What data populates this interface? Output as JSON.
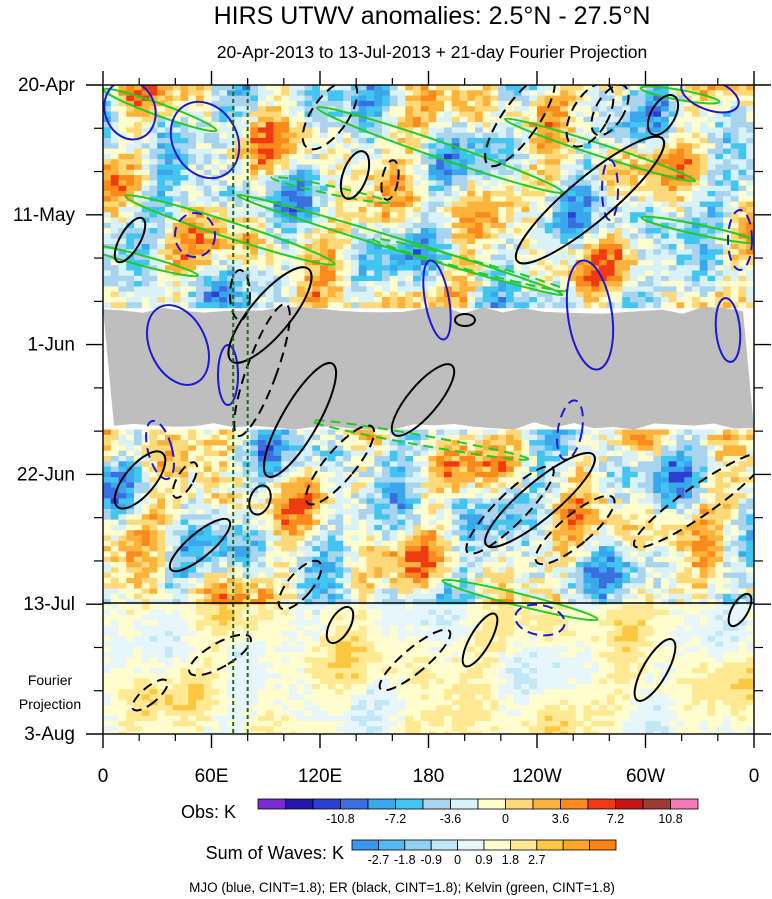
{
  "chart_data": {
    "type": "heatmap",
    "title": "HIRS UTWV anomalies: 2.5°N - 27.5°N",
    "subtitle": "20-Apr-2013 to 13-Jul-2013 + 21-day Fourier Projection",
    "x_ticks": [
      "0",
      "60E",
      "120E",
      "180",
      "120W",
      "60W",
      "0"
    ],
    "x_range_deg_east": [
      0,
      360
    ],
    "y_ticks": [
      "20-Apr",
      "11-May",
      "1-Jun",
      "22-Jun",
      "13-Jul",
      "3-Aug"
    ],
    "y_range": [
      "20-Apr-2013",
      "3-Aug-2013"
    ],
    "projection_label_lines": [
      "Fourier",
      "Projection"
    ],
    "missing_data_period": [
      "~23-May-2013",
      "~12-Jun-2013"
    ],
    "observation_end": "13-Jul-2013",
    "reference_longitudes_deg_east": [
      72,
      80
    ],
    "obs_colorbar": {
      "label": "Obs: K",
      "tick_labels": [
        "-10.8",
        "-7.2",
        "-3.6",
        "0",
        "3.6",
        "7.2",
        "10.8"
      ],
      "colors": [
        "#7b2bd6",
        "#2316a8",
        "#2b3fd1",
        "#3b6fe0",
        "#3aa6ec",
        "#42c5f0",
        "#a8d4f0",
        "#d8f2f8",
        "#fffccd",
        "#fdd97a",
        "#fcb33c",
        "#f98a1b",
        "#ef3a12",
        "#c81414",
        "#9c3a36",
        "#f77ab8"
      ]
    },
    "waves_colorbar": {
      "label": "Sum of Waves: K",
      "tick_labels": [
        "-2.7",
        "-1.8",
        "-0.9",
        "0",
        "0.9",
        "1.8",
        "2.7"
      ],
      "colors": [
        "#3a97f0",
        "#52b9f2",
        "#8fd2f4",
        "#c2e8f7",
        "#e6f6fb",
        "#fffccd",
        "#ffe993",
        "#fdc742",
        "#fca527",
        "#f98413"
      ]
    },
    "contour_series": [
      {
        "name": "MJO",
        "color": "#1a1ad6",
        "cint": 1.8
      },
      {
        "name": "ER",
        "color": "#000000",
        "cint": 1.8
      },
      {
        "name": "Kelvin",
        "color": "#22cc22",
        "cint": 1.8
      }
    ],
    "footnote": "MJO (blue, CINT=1.8); ER (black, CINT=1.8); Kelvin (green, CINT=1.8)"
  }
}
